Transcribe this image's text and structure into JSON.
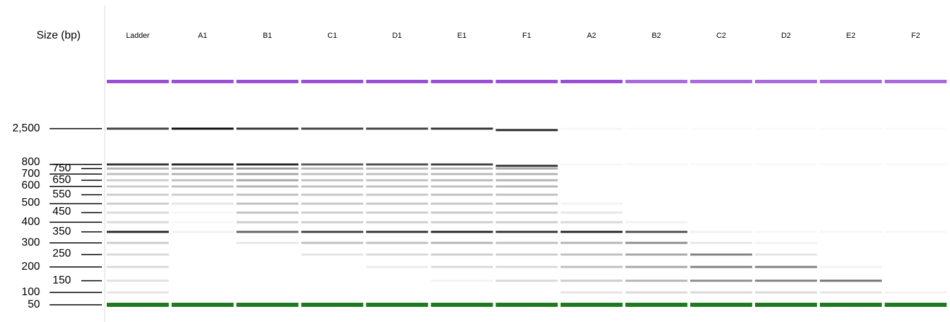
{
  "title": "Size (bp)",
  "lanes": [
    "Ladder",
    "A1",
    "B1",
    "C1",
    "D1",
    "E1",
    "F1",
    "A2",
    "B2",
    "C2",
    "D2",
    "E2",
    "F2"
  ],
  "sizes": [
    "2,500",
    "800",
    "750",
    "700",
    "650",
    "600",
    "550",
    "500",
    "450",
    "400",
    "350",
    "300",
    "250",
    "200",
    "150",
    "100",
    "50"
  ]
}
